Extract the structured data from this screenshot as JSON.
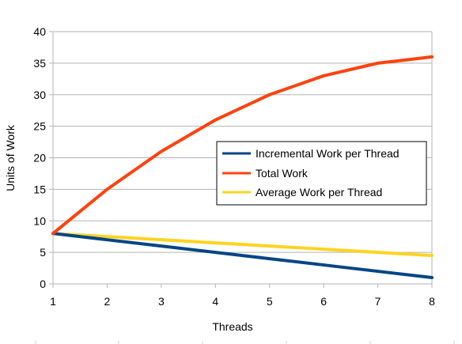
{
  "chart_data": {
    "type": "line",
    "title": "",
    "xlabel": "Threads",
    "ylabel": "Units of Work",
    "x": [
      1,
      2,
      3,
      4,
      5,
      6,
      7,
      8
    ],
    "xlim": [
      1,
      8
    ],
    "ylim": [
      0,
      40
    ],
    "yticks": [
      0,
      5,
      10,
      15,
      20,
      25,
      30,
      35,
      40
    ],
    "grid": "horizontal",
    "legend_position": "right",
    "series": [
      {
        "name": "Incremental Work per Thread",
        "color": "#004586",
        "values": [
          8,
          7,
          6,
          5,
          4,
          3,
          2,
          1
        ]
      },
      {
        "name": "Total Work",
        "color": "#ff420e",
        "values": [
          8,
          15,
          21,
          26,
          30,
          33,
          35,
          36
        ]
      },
      {
        "name": "Average Work per Thread",
        "color": "#ffd320",
        "values": [
          8,
          7.5,
          7,
          6.5,
          6,
          5.5,
          5,
          4.5
        ]
      }
    ]
  }
}
